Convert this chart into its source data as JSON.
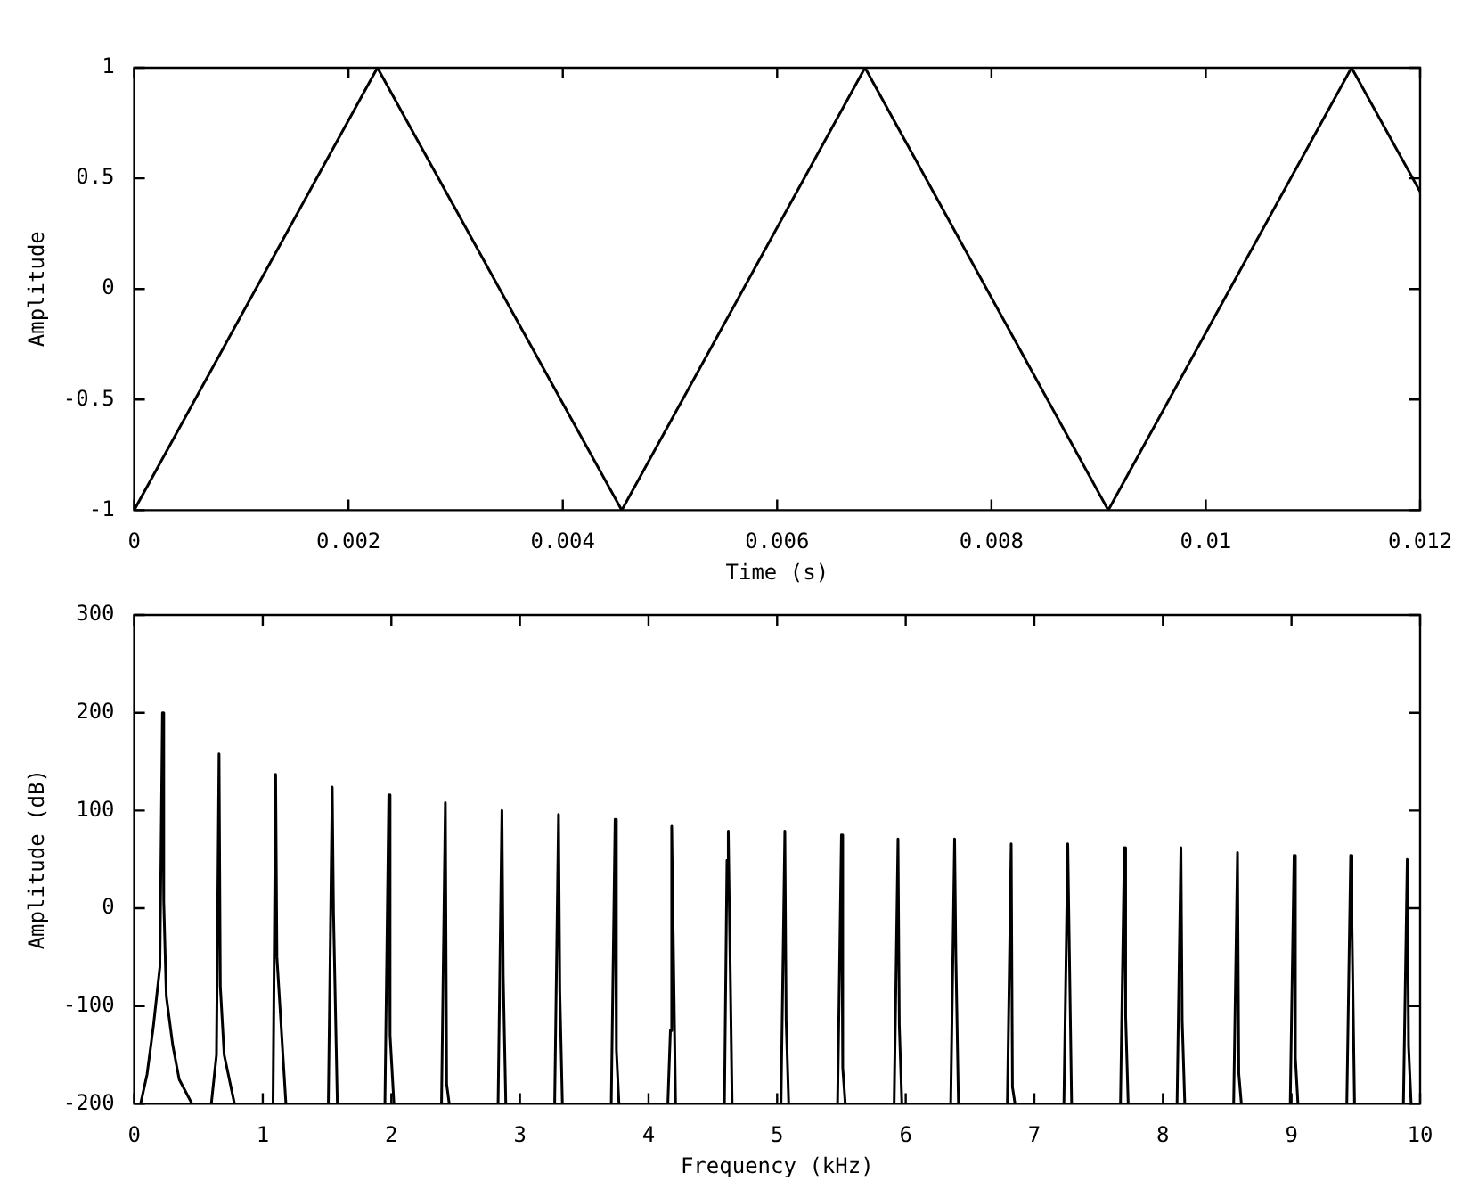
{
  "chart_data": [
    {
      "type": "line",
      "xlabel": "Time (s)",
      "ylabel": "Amplitude",
      "color": "#000000",
      "x": [
        0,
        0.00227,
        0.00455,
        0.00682,
        0.00909,
        0.01136,
        0.012
      ],
      "values": [
        -1,
        1,
        -1,
        1,
        -1,
        1,
        0.44
      ],
      "xlim": [
        0,
        0.012
      ],
      "xticks": [
        0,
        0.002,
        0.004,
        0.006,
        0.008,
        0.01,
        0.012
      ],
      "ylim": [
        -1,
        1
      ],
      "yticks": [
        -1,
        -0.5,
        0,
        0.5,
        1
      ]
    },
    {
      "type": "line",
      "xlabel": "Frequency (kHz)",
      "ylabel": "Amplitude (dB)",
      "color": "#000000",
      "x": [
        0,
        0.05,
        0.1,
        0.15,
        0.2,
        0.22,
        0.23,
        0.25,
        0.3,
        0.35,
        0.45,
        0.6,
        0.64,
        0.66,
        0.67,
        0.7,
        0.78,
        1.08,
        1.1,
        1.11,
        1.18,
        1.51,
        1.54,
        1.55,
        1.58,
        1.95,
        1.98,
        1.99,
        2.02,
        2.39,
        2.42,
        2.43,
        2.45,
        2.83,
        2.86,
        2.87,
        2.89,
        3.27,
        3.3,
        3.31,
        3.33,
        3.71,
        3.74,
        3.75,
        3.77,
        4.15,
        4.17,
        4.18,
        4.21,
        4.59,
        4.61,
        4.62,
        4.65,
        5.03,
        5.06,
        5.07,
        5.09,
        5.47,
        5.5,
        5.51,
        5.53,
        5.91,
        5.94,
        5.95,
        5.97,
        6.35,
        6.38,
        6.39,
        6.41,
        6.79,
        6.82,
        6.83,
        6.85,
        7.23,
        7.26,
        7.29,
        7.67,
        7.7,
        7.71,
        7.73,
        8.11,
        8.14,
        8.15,
        8.17,
        8.55,
        8.58,
        8.59,
        8.61,
        8.99,
        9.02,
        9.03,
        9.05,
        9.43,
        9.46,
        9.47,
        9.49,
        9.87,
        9.9,
        9.91,
        9.93,
        10
      ],
      "values": [
        -200,
        -200,
        -170,
        -120,
        -60,
        200,
        7,
        -90,
        -140,
        -175,
        -200,
        -200,
        -150,
        158,
        -80,
        -150,
        -200,
        -200,
        137,
        -50,
        -200,
        -200,
        124,
        -5,
        -200,
        -200,
        116,
        -130,
        -200,
        -200,
        108,
        -180,
        -200,
        -200,
        100,
        -70,
        -200,
        -200,
        96,
        -85,
        -200,
        -200,
        91,
        -145,
        -200,
        -200,
        -125,
        84,
        -200,
        -200,
        49,
        79,
        -200,
        -200,
        79,
        -115,
        -200,
        -200,
        75,
        -163,
        -200,
        -200,
        71,
        -119,
        -200,
        -200,
        71,
        -51,
        -200,
        -200,
        66,
        -183,
        -200,
        -200,
        66,
        -200,
        -200,
        62,
        -110,
        -200,
        -200,
        62,
        -115,
        -200,
        -200,
        57,
        -169,
        -200,
        -200,
        54,
        -153,
        -200,
        -200,
        54,
        -17,
        -200,
        -200,
        50,
        -141,
        -200,
        -200
      ],
      "xlim": [
        0,
        10
      ],
      "xticks": [
        0,
        1,
        2,
        3,
        4,
        5,
        6,
        7,
        8,
        9,
        10
      ],
      "ylim": [
        -200,
        300
      ],
      "yticks": [
        -200,
        -100,
        0,
        100,
        200,
        300
      ]
    }
  ]
}
